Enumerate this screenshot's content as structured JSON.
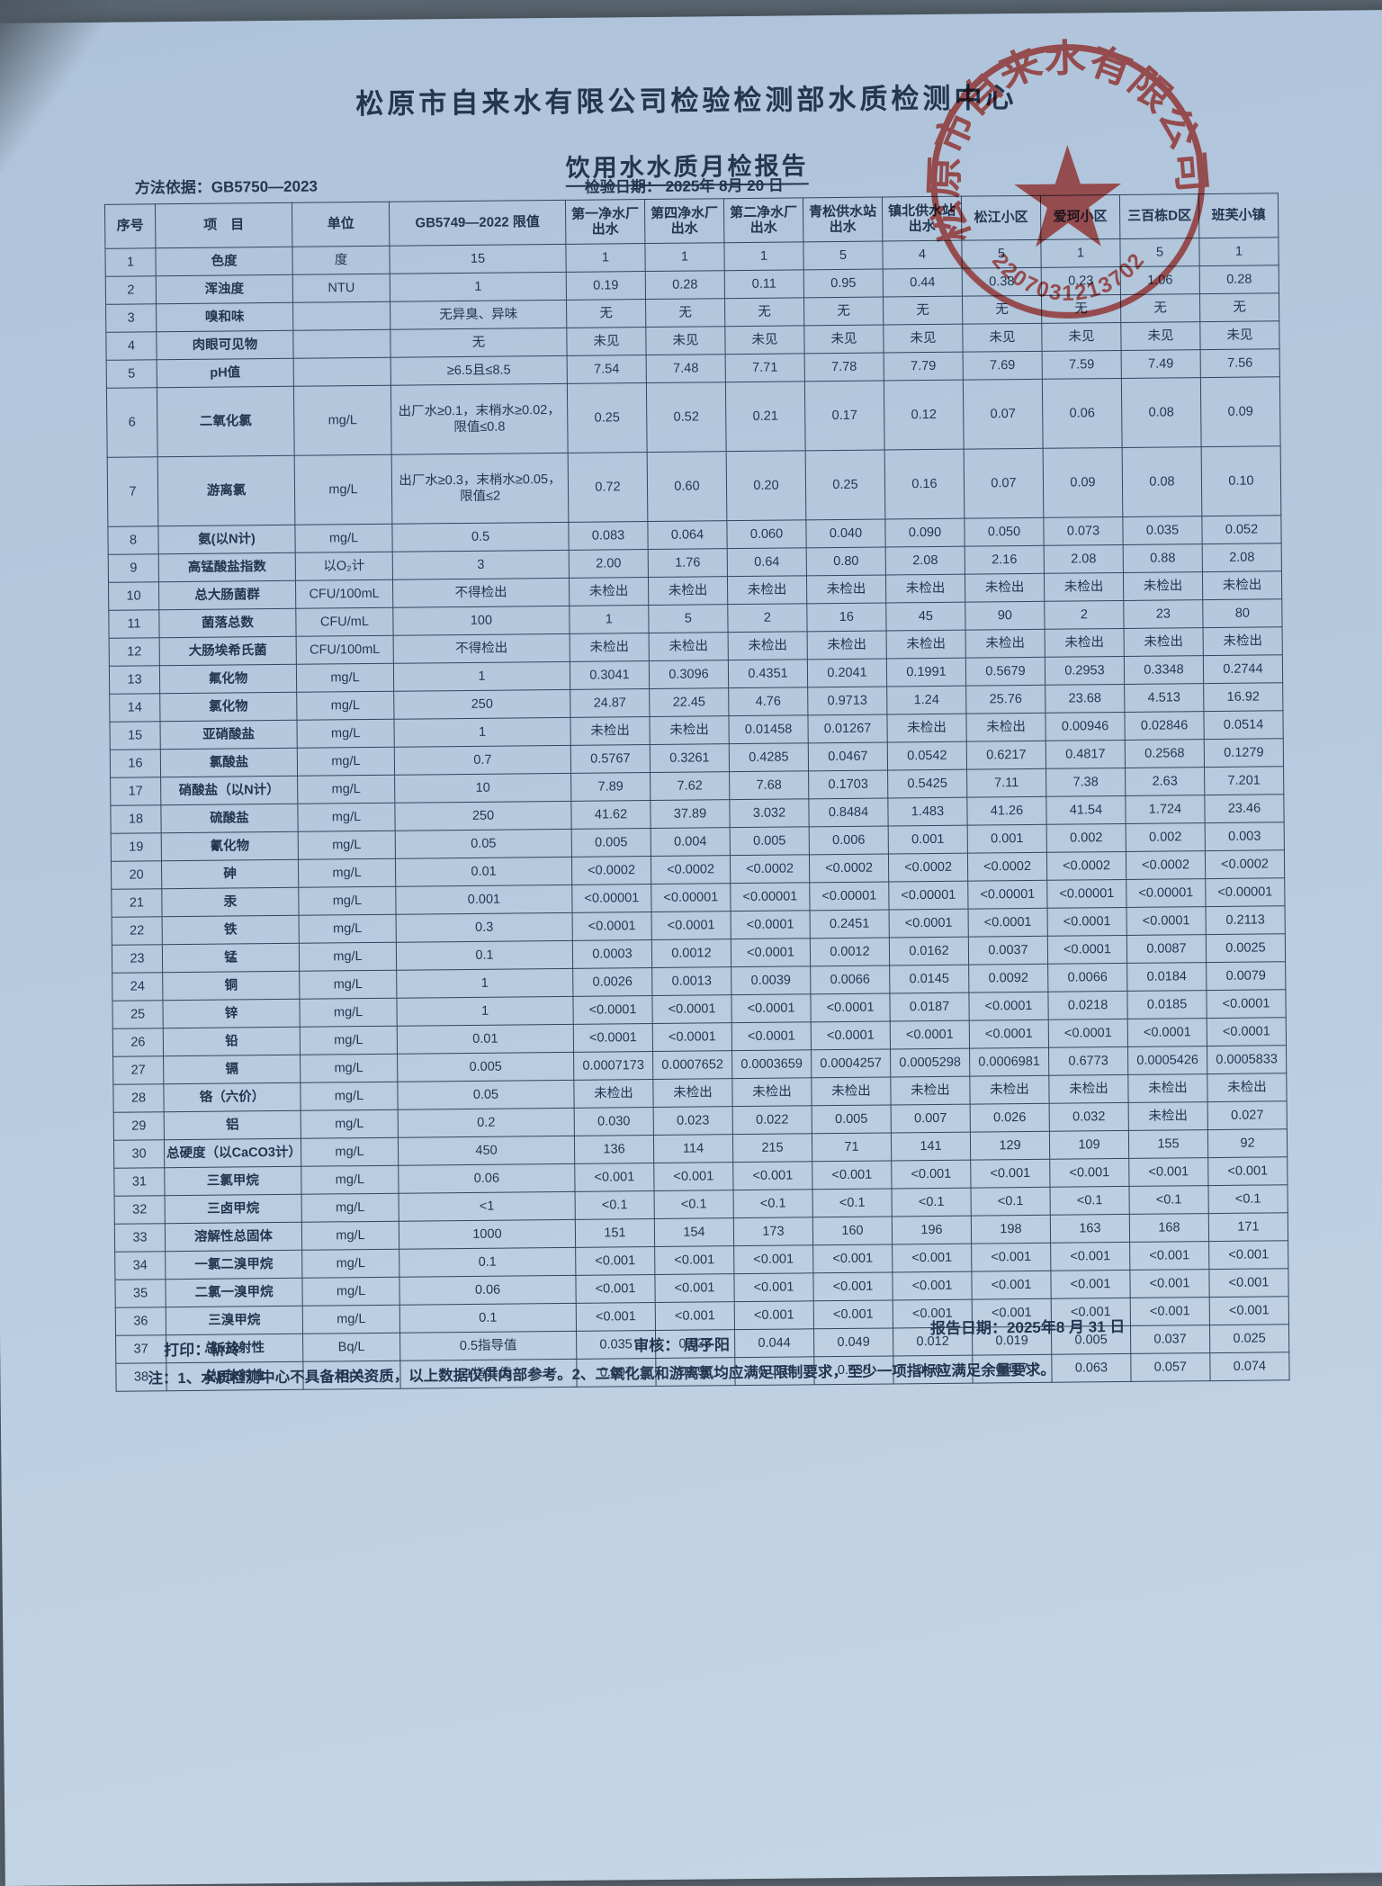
{
  "colors": {
    "paper": "#b5c9de",
    "ink": "#223650",
    "stamp_red": "#cf3f36"
  },
  "page": {
    "title": "松原市自来水有限公司检验检测部水质检测中心",
    "subtitle": "饮用水水质月检报告",
    "method_label": "方法依据：GB5750—2023",
    "test_date_label": "检验日期： 2025年 8月 20 日"
  },
  "stamp": {
    "arc_text": "松原市自来水有限公司",
    "code": "2207031213702",
    "star": "★"
  },
  "table": {
    "headers": [
      "序号",
      "项　目",
      "单位",
      "GB5749—2022 限值",
      "第一净水厂出水",
      "第四净水厂出水",
      "第二净水厂出水",
      "青松供水站出水",
      "镇北供水站出水",
      "松江小区",
      "爱珂小区",
      "三百栋D区",
      "班芙小镇"
    ],
    "rows": [
      {
        "no": "1",
        "item": "色度",
        "unit": "度",
        "limit": "15",
        "values": [
          "1",
          "1",
          "1",
          "5",
          "4",
          "5",
          "1",
          "5",
          "1"
        ]
      },
      {
        "no": "2",
        "item": "浑浊度",
        "unit": "NTU",
        "limit": "1",
        "values": [
          "0.19",
          "0.28",
          "0.11",
          "0.95",
          "0.44",
          "0.38",
          "0.23",
          "1.06",
          "0.28"
        ]
      },
      {
        "no": "3",
        "item": "嗅和味",
        "unit": "",
        "limit": "无异臭、异味",
        "values": [
          "无",
          "无",
          "无",
          "无",
          "无",
          "无",
          "无",
          "无",
          "无"
        ]
      },
      {
        "no": "4",
        "item": "肉眼可见物",
        "unit": "",
        "limit": "无",
        "values": [
          "未见",
          "未见",
          "未见",
          "未见",
          "未见",
          "未见",
          "未见",
          "未见",
          "未见"
        ]
      },
      {
        "no": "5",
        "item": "pH值",
        "unit": "",
        "limit": "≥6.5且≤8.5",
        "values": [
          "7.54",
          "7.48",
          "7.71",
          "7.78",
          "7.79",
          "7.69",
          "7.59",
          "7.49",
          "7.56"
        ]
      },
      {
        "no": "6",
        "item": "二氧化氯",
        "unit": "mg/L",
        "limit": "出厂水≥0.1，末梢水≥0.02，限值≤0.8",
        "values": [
          "0.25",
          "0.52",
          "0.21",
          "0.17",
          "0.12",
          "0.07",
          "0.06",
          "0.08",
          "0.09"
        ]
      },
      {
        "no": "7",
        "item": "游离氯",
        "unit": "mg/L",
        "limit": "出厂水≥0.3，末梢水≥0.05，限值≤2",
        "values": [
          "0.72",
          "0.60",
          "0.20",
          "0.25",
          "0.16",
          "0.07",
          "0.09",
          "0.08",
          "0.10"
        ]
      },
      {
        "no": "8",
        "item": "氨(以N计)",
        "unit": "mg/L",
        "limit": "0.5",
        "values": [
          "0.083",
          "0.064",
          "0.060",
          "0.040",
          "0.090",
          "0.050",
          "0.073",
          "0.035",
          "0.052"
        ]
      },
      {
        "no": "9",
        "item": "高锰酸盐指数",
        "unit": "以O₂计",
        "limit": "3",
        "values": [
          "2.00",
          "1.76",
          "0.64",
          "0.80",
          "2.08",
          "2.16",
          "2.08",
          "0.88",
          "2.08"
        ]
      },
      {
        "no": "10",
        "item": "总大肠菌群",
        "unit": "CFU/100mL",
        "limit": "不得检出",
        "values": [
          "未检出",
          "未检出",
          "未检出",
          "未检出",
          "未检出",
          "未检出",
          "未检出",
          "未检出",
          "未检出"
        ]
      },
      {
        "no": "11",
        "item": "菌落总数",
        "unit": "CFU/mL",
        "limit": "100",
        "values": [
          "1",
          "5",
          "2",
          "16",
          "45",
          "90",
          "2",
          "23",
          "80"
        ]
      },
      {
        "no": "12",
        "item": "大肠埃希氏菌",
        "unit": "CFU/100mL",
        "limit": "不得检出",
        "values": [
          "未检出",
          "未检出",
          "未检出",
          "未检出",
          "未检出",
          "未检出",
          "未检出",
          "未检出",
          "未检出"
        ]
      },
      {
        "no": "13",
        "item": "氟化物",
        "unit": "mg/L",
        "limit": "1",
        "values": [
          "0.3041",
          "0.3096",
          "0.4351",
          "0.2041",
          "0.1991",
          "0.5679",
          "0.2953",
          "0.3348",
          "0.2744"
        ]
      },
      {
        "no": "14",
        "item": "氯化物",
        "unit": "mg/L",
        "limit": "250",
        "values": [
          "24.87",
          "22.45",
          "4.76",
          "0.9713",
          "1.24",
          "25.76",
          "23.68",
          "4.513",
          "16.92"
        ]
      },
      {
        "no": "15",
        "item": "亚硝酸盐",
        "unit": "mg/L",
        "limit": "1",
        "values": [
          "未检出",
          "未检出",
          "0.01458",
          "0.01267",
          "未检出",
          "未检出",
          "0.00946",
          "0.02846",
          "0.0514"
        ]
      },
      {
        "no": "16",
        "item": "氯酸盐",
        "unit": "mg/L",
        "limit": "0.7",
        "values": [
          "0.5767",
          "0.3261",
          "0.4285",
          "0.0467",
          "0.0542",
          "0.6217",
          "0.4817",
          "0.2568",
          "0.1279"
        ]
      },
      {
        "no": "17",
        "item": "硝酸盐（以N计）",
        "unit": "mg/L",
        "limit": "10",
        "values": [
          "7.89",
          "7.62",
          "7.68",
          "0.1703",
          "0.5425",
          "7.11",
          "7.38",
          "2.63",
          "7.201"
        ]
      },
      {
        "no": "18",
        "item": "硫酸盐",
        "unit": "mg/L",
        "limit": "250",
        "values": [
          "41.62",
          "37.89",
          "3.032",
          "0.8484",
          "1.483",
          "41.26",
          "41.54",
          "1.724",
          "23.46"
        ]
      },
      {
        "no": "19",
        "item": "氰化物",
        "unit": "mg/L",
        "limit": "0.05",
        "values": [
          "0.005",
          "0.004",
          "0.005",
          "0.006",
          "0.001",
          "0.001",
          "0.002",
          "0.002",
          "0.003"
        ]
      },
      {
        "no": "20",
        "item": "砷",
        "unit": "mg/L",
        "limit": "0.01",
        "values": [
          "<0.0002",
          "<0.0002",
          "<0.0002",
          "<0.0002",
          "<0.0002",
          "<0.0002",
          "<0.0002",
          "<0.0002",
          "<0.0002"
        ]
      },
      {
        "no": "21",
        "item": "汞",
        "unit": "mg/L",
        "limit": "0.001",
        "values": [
          "<0.00001",
          "<0.00001",
          "<0.00001",
          "<0.00001",
          "<0.00001",
          "<0.00001",
          "<0.00001",
          "<0.00001",
          "<0.00001"
        ]
      },
      {
        "no": "22",
        "item": "铁",
        "unit": "mg/L",
        "limit": "0.3",
        "values": [
          "<0.0001",
          "<0.0001",
          "<0.0001",
          "0.2451",
          "<0.0001",
          "<0.0001",
          "<0.0001",
          "<0.0001",
          "0.2113"
        ]
      },
      {
        "no": "23",
        "item": "锰",
        "unit": "mg/L",
        "limit": "0.1",
        "values": [
          "0.0003",
          "0.0012",
          "<0.0001",
          "0.0012",
          "0.0162",
          "0.0037",
          "<0.0001",
          "0.0087",
          "0.0025"
        ]
      },
      {
        "no": "24",
        "item": "铜",
        "unit": "mg/L",
        "limit": "1",
        "values": [
          "0.0026",
          "0.0013",
          "0.0039",
          "0.0066",
          "0.0145",
          "0.0092",
          "0.0066",
          "0.0184",
          "0.0079"
        ]
      },
      {
        "no": "25",
        "item": "锌",
        "unit": "mg/L",
        "limit": "1",
        "values": [
          "<0.0001",
          "<0.0001",
          "<0.0001",
          "<0.0001",
          "0.0187",
          "<0.0001",
          "0.0218",
          "0.0185",
          "<0.0001"
        ]
      },
      {
        "no": "26",
        "item": "铅",
        "unit": "mg/L",
        "limit": "0.01",
        "values": [
          "<0.0001",
          "<0.0001",
          "<0.0001",
          "<0.0001",
          "<0.0001",
          "<0.0001",
          "<0.0001",
          "<0.0001",
          "<0.0001"
        ]
      },
      {
        "no": "27",
        "item": "镉",
        "unit": "mg/L",
        "limit": "0.005",
        "values": [
          "0.0007173",
          "0.0007652",
          "0.0003659",
          "0.0004257",
          "0.0005298",
          "0.0006981",
          "0.6773",
          "0.0005426",
          "0.0005833"
        ]
      },
      {
        "no": "28",
        "item": "铬（六价）",
        "unit": "mg/L",
        "limit": "0.05",
        "values": [
          "未检出",
          "未检出",
          "未检出",
          "未检出",
          "未检出",
          "未检出",
          "未检出",
          "未检出",
          "未检出"
        ]
      },
      {
        "no": "29",
        "item": "铝",
        "unit": "mg/L",
        "limit": "0.2",
        "values": [
          "0.030",
          "0.023",
          "0.022",
          "0.005",
          "0.007",
          "0.026",
          "0.032",
          "未检出",
          "0.027"
        ]
      },
      {
        "no": "30",
        "item": "总硬度（以CaCO3计）",
        "unit": "mg/L",
        "limit": "450",
        "values": [
          "136",
          "114",
          "215",
          "71",
          "141",
          "129",
          "109",
          "155",
          "92"
        ]
      },
      {
        "no": "31",
        "item": "三氯甲烷",
        "unit": "mg/L",
        "limit": "0.06",
        "values": [
          "<0.001",
          "<0.001",
          "<0.001",
          "<0.001",
          "<0.001",
          "<0.001",
          "<0.001",
          "<0.001",
          "<0.001"
        ]
      },
      {
        "no": "32",
        "item": "三卤甲烷",
        "unit": "mg/L",
        "limit": "<1",
        "values": [
          "<0.1",
          "<0.1",
          "<0.1",
          "<0.1",
          "<0.1",
          "<0.1",
          "<0.1",
          "<0.1",
          "<0.1"
        ]
      },
      {
        "no": "33",
        "item": "溶解性总固体",
        "unit": "mg/L",
        "limit": "1000",
        "values": [
          "151",
          "154",
          "173",
          "160",
          "196",
          "198",
          "163",
          "168",
          "171"
        ]
      },
      {
        "no": "34",
        "item": "一氯二溴甲烷",
        "unit": "mg/L",
        "limit": "0.1",
        "values": [
          "<0.001",
          "<0.001",
          "<0.001",
          "<0.001",
          "<0.001",
          "<0.001",
          "<0.001",
          "<0.001",
          "<0.001"
        ]
      },
      {
        "no": "35",
        "item": "二氯一溴甲烷",
        "unit": "mg/L",
        "limit": "0.06",
        "values": [
          "<0.001",
          "<0.001",
          "<0.001",
          "<0.001",
          "<0.001",
          "<0.001",
          "<0.001",
          "<0.001",
          "<0.001"
        ]
      },
      {
        "no": "36",
        "item": "三溴甲烷",
        "unit": "mg/L",
        "limit": "0.1",
        "values": [
          "<0.001",
          "<0.001",
          "<0.001",
          "<0.001",
          "<0.001",
          "<0.001",
          "<0.001",
          "<0.001",
          "<0.001"
        ]
      },
      {
        "no": "37",
        "item": "总α放射性",
        "unit": "Bq/L",
        "limit": "0.5指导值",
        "values": [
          "0.035",
          "0.035",
          "0.044",
          "0.049",
          "0.012",
          "0.019",
          "0.005",
          "0.037",
          "0.025"
        ]
      },
      {
        "no": "38",
        "item": "总β放射性",
        "unit": "Bq /L",
        "limit": "1指导值",
        "values": [
          "0.097",
          "0.096",
          "0.016",
          "0.035",
          "0.061",
          "0.107",
          "0.063",
          "0.057",
          "0.074"
        ]
      }
    ]
  },
  "footer": {
    "print_label": "打印：靳玲",
    "review_label": "审核： 周子阳",
    "report_date_label": "报告日期：2025年8 月 31 日",
    "note": "注：1、水质检测中心不具备相关资质，以上数据仅供内部参考。2、二氧化氯和游离氯均应满足限制要求，至少一项指标应满足余量要求。"
  }
}
